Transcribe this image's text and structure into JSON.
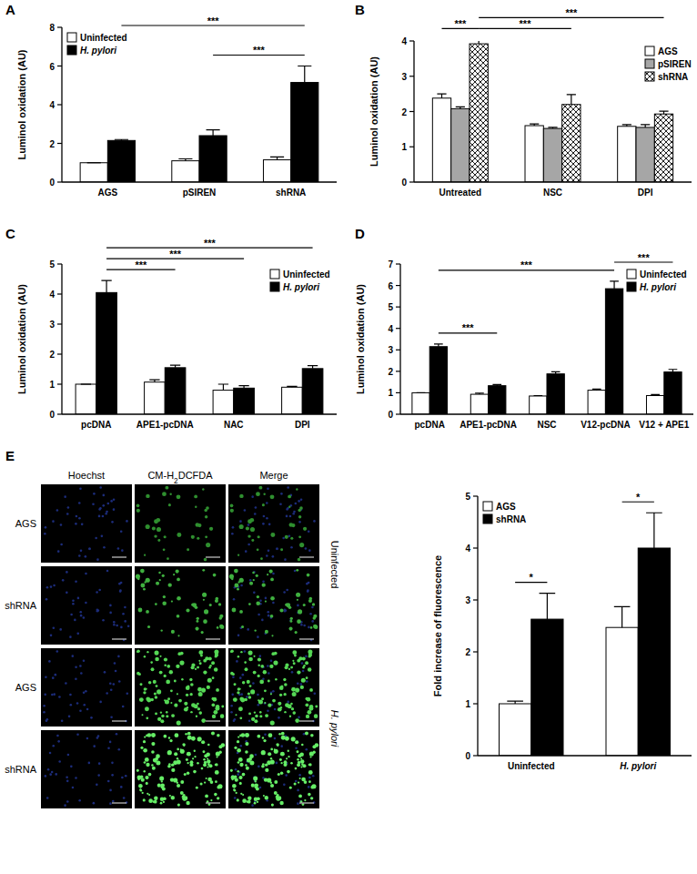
{
  "panel_labels": [
    "A",
    "B",
    "C",
    "D",
    "E"
  ],
  "chart_data": [
    {
      "type": "bar",
      "y_label": "Luminol oxidation (AU)",
      "categories": [
        "AGS",
        "pSIREN",
        "shRNA"
      ],
      "series": [
        {
          "name": "Uninfected",
          "color": "#ffffff",
          "values": [
            1.0,
            1.1,
            1.15
          ],
          "errors": [
            0.0,
            0.1,
            0.15
          ]
        },
        {
          "name": "H. pylori",
          "color": "#000000",
          "values": [
            2.15,
            2.4,
            5.15
          ],
          "errors": [
            0.05,
            0.3,
            0.85
          ]
        }
      ],
      "ylim": [
        0,
        8
      ],
      "yticks": [
        0,
        2,
        4,
        6,
        8
      ],
      "legend": "upper left",
      "grid": false,
      "annotations": [
        {
          "text": "***",
          "from": [
            1,
            1
          ],
          "to": [
            1,
            2
          ]
        },
        {
          "text": "***",
          "from": [
            1,
            0
          ],
          "to": [
            1,
            2
          ]
        }
      ]
    },
    {
      "type": "bar",
      "y_label": "Luminol oxidation (AU)",
      "categories": [
        "Untreated",
        "NSC",
        "DPI"
      ],
      "series": [
        {
          "name": "AGS",
          "color": "#ffffff",
          "values": [
            2.38,
            1.6,
            1.58
          ],
          "errors": [
            0.12,
            0.05,
            0.05
          ]
        },
        {
          "name": "pSIREN",
          "color": "#a6a6a6",
          "values": [
            2.08,
            1.52,
            1.55
          ],
          "errors": [
            0.05,
            0.03,
            0.08
          ]
        },
        {
          "name": "shRNA",
          "color": "#ffffff",
          "marker": "crosshatch",
          "values": [
            3.92,
            2.2,
            1.93
          ],
          "errors": [
            0.12,
            0.28,
            0.08
          ]
        }
      ],
      "ylim": [
        0,
        4
      ],
      "yticks": [
        0,
        1,
        2,
        3,
        4
      ],
      "legend": "upper right",
      "grid": false,
      "annotations": [
        {
          "text": "***",
          "from": [
            0,
            0
          ],
          "to": [
            2,
            0
          ]
        },
        {
          "text": "***",
          "from": [
            2,
            0
          ],
          "to": [
            2,
            1
          ]
        },
        {
          "text": "***",
          "from": [
            2,
            0
          ],
          "to": [
            2,
            2
          ]
        }
      ]
    },
    {
      "type": "bar",
      "y_label": "Luminol oxidation (AU)",
      "categories": [
        "pcDNA",
        "APE1-pcDNA",
        "NAC",
        "DPI"
      ],
      "series": [
        {
          "name": "Uninfected",
          "color": "#ffffff",
          "values": [
            1.0,
            1.07,
            0.8,
            0.9
          ],
          "errors": [
            0.0,
            0.08,
            0.2,
            0.03
          ]
        },
        {
          "name": "H. pylori",
          "color": "#000000",
          "values": [
            4.05,
            1.55,
            0.87,
            1.52
          ],
          "errors": [
            0.4,
            0.08,
            0.08,
            0.1
          ]
        }
      ],
      "ylim": [
        0,
        5
      ],
      "yticks": [
        0,
        1,
        2,
        3,
        4,
        5
      ],
      "legend": "upper right",
      "grid": false,
      "annotations": [
        {
          "text": "***",
          "from": [
            1,
            0
          ],
          "to": [
            1,
            1
          ]
        },
        {
          "text": "***",
          "from": [
            1,
            0
          ],
          "to": [
            1,
            2
          ]
        },
        {
          "text": "***",
          "from": [
            1,
            0
          ],
          "to": [
            1,
            3
          ]
        }
      ]
    },
    {
      "type": "bar",
      "y_label": "Luminol oxidation (AU)",
      "categories": [
        "pcDNA",
        "APE1-pcDNA",
        "NSC",
        "V12-pcDNA",
        "V12 + APE1"
      ],
      "series": [
        {
          "name": "Uninfected",
          "color": "#ffffff",
          "values": [
            1.0,
            0.93,
            0.85,
            1.12,
            0.87
          ],
          "errors": [
            0.0,
            0.05,
            0.02,
            0.05,
            0.05
          ]
        },
        {
          "name": "H. pylori",
          "color": "#000000",
          "values": [
            3.15,
            1.33,
            1.88,
            5.85,
            1.97
          ],
          "errors": [
            0.12,
            0.05,
            0.1,
            0.35,
            0.12
          ]
        }
      ],
      "ylim": [
        0,
        7
      ],
      "yticks": [
        0,
        1,
        2,
        3,
        4,
        5,
        6,
        7
      ],
      "legend": "upper right",
      "grid": false,
      "annotations": [
        {
          "text": "***",
          "from": [
            1,
            0
          ],
          "to": [
            1,
            1
          ]
        },
        {
          "text": "***",
          "from": [
            1,
            0
          ],
          "to": [
            1,
            3
          ]
        },
        {
          "text": "***",
          "from": [
            1,
            3
          ],
          "to": [
            1,
            4
          ]
        }
      ]
    },
    {
      "type": "bar",
      "y_label": "Fold increase of fluorescence",
      "categories": [
        "Uninfected",
        "H. pylori"
      ],
      "series": [
        {
          "name": "AGS",
          "color": "#ffffff",
          "values": [
            1.0,
            2.47
          ],
          "errors": [
            0.05,
            0.4
          ]
        },
        {
          "name": "shRNA",
          "color": "#000000",
          "values": [
            2.63,
            4.0
          ],
          "errors": [
            0.5,
            0.68
          ]
        }
      ],
      "ylim": [
        0,
        5
      ],
      "yticks": [
        0,
        1,
        2,
        3,
        4,
        5
      ],
      "legend": "upper left",
      "grid": false,
      "annotations": [
        {
          "text": "*",
          "from": [
            0,
            0
          ],
          "to": [
            1,
            0
          ]
        },
        {
          "text": "*",
          "from": [
            0,
            1
          ],
          "to": [
            1,
            1
          ]
        }
      ]
    }
  ],
  "micrograph_panel": {
    "columns": [
      "Hoechst",
      "CM-H2DCFDA",
      "Merge"
    ],
    "rows": [
      "AGS",
      "shRNA",
      "AGS",
      "shRNA"
    ],
    "conditions": [
      {
        "label": "Uninfected",
        "rows": [
          0,
          1
        ]
      },
      {
        "label": "H. pylori",
        "rows": [
          2,
          3
        ]
      }
    ]
  }
}
